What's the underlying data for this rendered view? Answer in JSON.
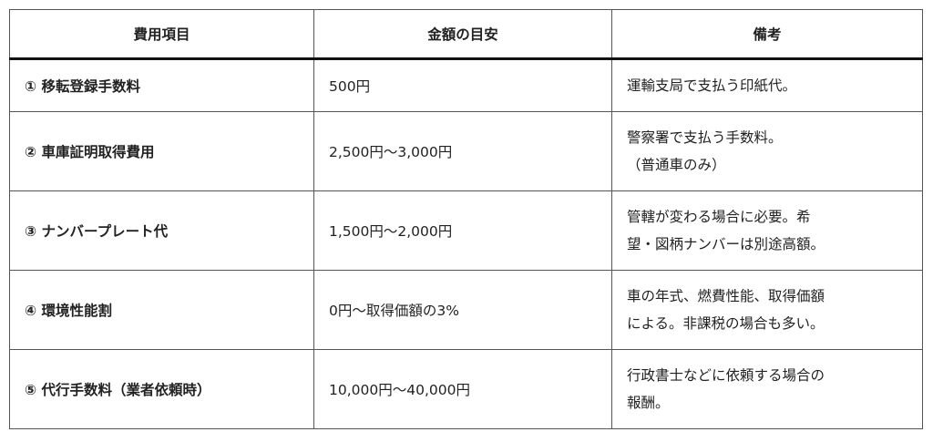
{
  "table": {
    "headers": [
      "費用項目",
      "金額の目安",
      "備考"
    ],
    "rows": [
      {
        "item": "① 移転登録手数料",
        "amount": "500円",
        "note": [
          "運輸支局で支払う印紙代。"
        ]
      },
      {
        "item": "② 車庫証明取得費用",
        "amount": "2,500円～3,000円",
        "note": [
          "警察署で支払う手数料。",
          "（普通車のみ）"
        ]
      },
      {
        "item": "③ ナンバープレート代",
        "amount": "1,500円～2,000円",
        "note": [
          "管轄が変わる場合に必要。希",
          "望・図柄ナンバーは別途高額。"
        ]
      },
      {
        "item": "④ 環境性能割",
        "amount": "0円～取得価額の3%",
        "note": [
          "車の年式、燃費性能、取得価額",
          "による。非課税の場合も多い。"
        ]
      },
      {
        "item": "⑤ 代行手数料（業者依頼時）",
        "amount": "10,000円～40,000円",
        "note": [
          "行政書士などに依頼する場合の",
          "報酬。"
        ]
      }
    ]
  }
}
